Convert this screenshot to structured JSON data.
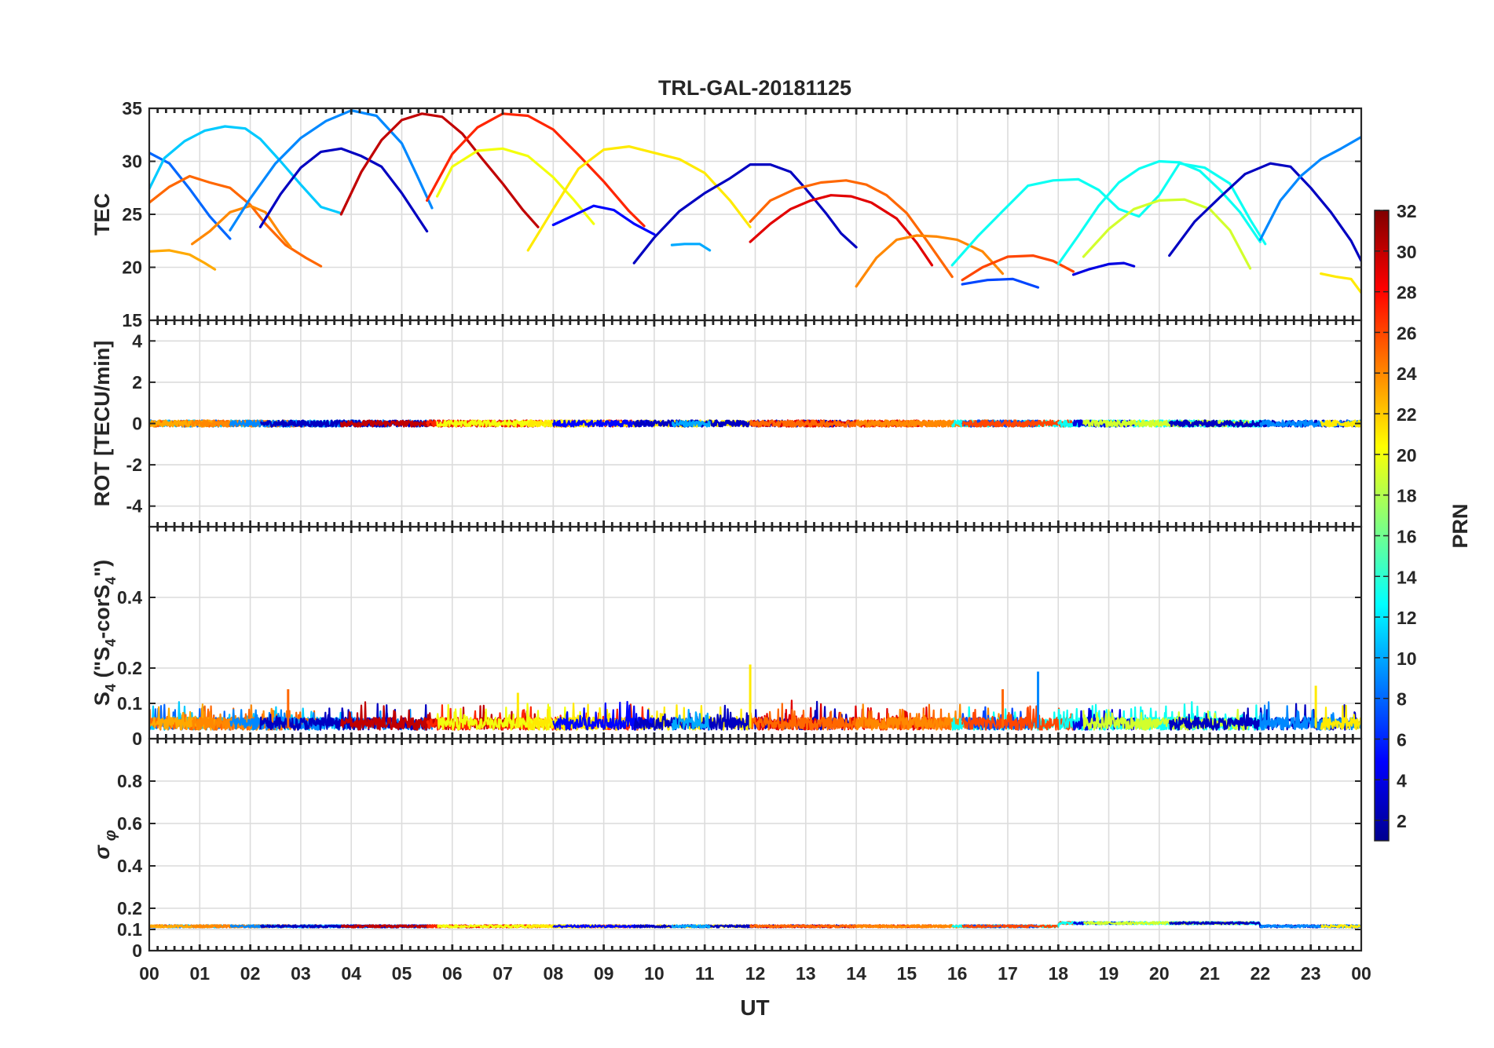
{
  "chart_data": {
    "type": "line",
    "title": "TRL-GAL-20181125",
    "xlabel": "UT",
    "x_tick_labels": [
      "00",
      "01",
      "02",
      "03",
      "04",
      "05",
      "06",
      "07",
      "08",
      "09",
      "10",
      "11",
      "12",
      "13",
      "14",
      "15",
      "16",
      "17",
      "18",
      "19",
      "20",
      "21",
      "22",
      "23",
      "00"
    ],
    "xlim": [
      0,
      24
    ],
    "colorbar": {
      "label": "PRN",
      "range": [
        1,
        32
      ],
      "tick_labels": [
        "2",
        "4",
        "6",
        "8",
        "10",
        "12",
        "14",
        "16",
        "18",
        "20",
        "22",
        "24",
        "26",
        "28",
        "30",
        "32"
      ],
      "tick_values": [
        2,
        4,
        6,
        8,
        10,
        12,
        14,
        16,
        18,
        20,
        22,
        24,
        26,
        28,
        30,
        32
      ],
      "colormap": "jet"
    },
    "panels": [
      {
        "id": "tec",
        "ylabel": "TEC",
        "ylim": [
          15,
          35
        ],
        "y_ticks": [
          15,
          20,
          25,
          30,
          35
        ],
        "y_tick_labels": [
          "15",
          "20",
          "25",
          "30",
          "35"
        ],
        "series": [
          {
            "prn": 8,
            "x": [
              0.0,
              0.4,
              0.8,
              1.2,
              1.6
            ],
            "y": [
              30.8,
              29.8,
              27.4,
              24.8,
              22.7
            ]
          },
          {
            "prn": 11,
            "x": [
              0.0,
              0.3,
              0.7,
              1.1,
              1.5,
              1.9,
              2.2,
              2.6,
              3.0,
              3.4,
              3.8
            ],
            "y": [
              27.4,
              30.3,
              31.9,
              32.9,
              33.3,
              33.1,
              32.1,
              30.0,
              27.8,
              25.7,
              25.1
            ]
          },
          {
            "prn": 25,
            "x": [
              0.0,
              0.4,
              0.8,
              1.2,
              1.6,
              2.0,
              2.3,
              2.7,
              3.1,
              3.4
            ],
            "y": [
              26.1,
              27.6,
              28.6,
              28.0,
              27.5,
              25.9,
              24.1,
              22.1,
              20.9,
              20.1
            ]
          },
          {
            "prn": 23,
            "x": [
              0.0,
              0.4,
              0.8,
              1.1,
              1.3
            ],
            "y": [
              21.5,
              21.6,
              21.2,
              20.4,
              19.8
            ]
          },
          {
            "prn": 24,
            "x": [
              0.85,
              1.2,
              1.6,
              2.0,
              2.3,
              2.6,
              2.8
            ],
            "y": [
              22.2,
              23.4,
              25.2,
              25.8,
              25.2,
              23.1,
              21.9
            ]
          },
          {
            "prn": 9,
            "x": [
              1.6,
              2.0,
              2.5,
              3.0,
              3.5,
              4.0,
              4.5,
              5.0,
              5.3,
              5.6
            ],
            "y": [
              23.5,
              26.5,
              29.8,
              32.2,
              33.8,
              34.8,
              34.3,
              31.7,
              28.7,
              25.6
            ]
          },
          {
            "prn": 3,
            "x": [
              2.2,
              2.6,
              3.0,
              3.4,
              3.8,
              4.2,
              4.6,
              5.0,
              5.5
            ],
            "y": [
              23.8,
              26.9,
              29.4,
              30.9,
              31.2,
              30.5,
              29.5,
              27.0,
              23.4
            ]
          },
          {
            "prn": 30,
            "x": [
              3.8,
              4.2,
              4.6,
              5.0,
              5.4,
              5.8,
              6.2,
              6.6,
              7.0,
              7.4,
              7.7
            ],
            "y": [
              25.0,
              29.0,
              32.0,
              33.9,
              34.5,
              34.2,
              32.6,
              30.2,
              27.9,
              25.4,
              23.8
            ]
          },
          {
            "prn": 27,
            "x": [
              5.5,
              6.0,
              6.5,
              7.0,
              7.5,
              8.0,
              8.5,
              9.0,
              9.5,
              9.8
            ],
            "y": [
              26.3,
              30.7,
              33.2,
              34.5,
              34.3,
              33.0,
              30.6,
              28.1,
              25.3,
              23.9
            ]
          },
          {
            "prn": 20,
            "x": [
              5.7,
              6.0,
              6.5,
              7.0,
              7.5,
              8.0,
              8.4,
              8.8
            ],
            "y": [
              26.7,
              29.5,
              31.0,
              31.2,
              30.5,
              28.5,
              26.4,
              24.1
            ]
          },
          {
            "prn": 21,
            "x": [
              7.5,
              8.0,
              8.5,
              9.0,
              9.5,
              10.0,
              10.5,
              11.0,
              11.5,
              11.9
            ],
            "y": [
              21.6,
              25.5,
              29.3,
              31.1,
              31.4,
              30.8,
              30.2,
              28.9,
              26.3,
              23.8
            ]
          },
          {
            "prn": 5,
            "x": [
              8.0,
              8.4,
              8.8,
              9.2,
              9.6,
              10.0
            ],
            "y": [
              24.0,
              24.9,
              25.8,
              25.4,
              24.1,
              23.1
            ]
          },
          {
            "prn": 3,
            "x": [
              9.6,
              10.0,
              10.5,
              11.0,
              11.5,
              11.9,
              12.3,
              12.7,
              13.0,
              13.4,
              13.7,
              14.0
            ],
            "y": [
              20.4,
              22.8,
              25.3,
              27.0,
              28.4,
              29.7,
              29.7,
              29.0,
              27.4,
              25.1,
              23.2,
              21.9
            ]
          },
          {
            "prn": 10,
            "x": [
              10.35,
              10.6,
              10.9,
              11.1
            ],
            "y": [
              22.1,
              22.2,
              22.2,
              21.6
            ]
          },
          {
            "prn": 29,
            "x": [
              11.9,
              12.3,
              12.7,
              13.1,
              13.5,
              13.9,
              14.3,
              14.8,
              15.2,
              15.5
            ],
            "y": [
              22.4,
              24.1,
              25.5,
              26.3,
              26.8,
              26.7,
              26.1,
              24.6,
              22.3,
              20.2
            ]
          },
          {
            "prn": 25,
            "x": [
              11.9,
              12.3,
              12.8,
              13.3,
              13.8,
              14.2,
              14.6,
              15.0,
              15.4,
              15.9
            ],
            "y": [
              24.3,
              26.3,
              27.4,
              28.0,
              28.2,
              27.8,
              26.8,
              25.1,
              22.5,
              19.1
            ]
          },
          {
            "prn": 24,
            "x": [
              14.0,
              14.4,
              14.8,
              15.2,
              15.6,
              16.0,
              16.5,
              16.9
            ],
            "y": [
              18.2,
              20.9,
              22.6,
              23.0,
              22.9,
              22.6,
              21.5,
              19.4
            ]
          },
          {
            "prn": 13,
            "x": [
              15.9,
              16.4,
              16.9,
              17.4,
              17.9,
              18.4,
              18.8,
              19.2,
              19.6,
              20.0,
              20.4,
              20.9,
              21.4,
              21.8,
              22.1
            ],
            "y": [
              20.2,
              22.9,
              25.3,
              27.7,
              28.2,
              28.3,
              27.3,
              25.5,
              24.8,
              26.8,
              29.8,
              29.4,
              27.9,
              24.5,
              22.2
            ]
          },
          {
            "prn": 7,
            "x": [
              16.1,
              16.6,
              17.1,
              17.6
            ],
            "y": [
              18.4,
              18.8,
              18.9,
              18.1
            ]
          },
          {
            "prn": 26,
            "x": [
              16.1,
              16.5,
              17.0,
              17.5,
              17.9,
              18.3
            ],
            "y": [
              18.8,
              20.0,
              21.0,
              21.1,
              20.6,
              19.6
            ]
          },
          {
            "prn": 13,
            "x": [
              18.0,
              18.4,
              18.8,
              19.2,
              19.6,
              20.0,
              20.4,
              20.8,
              21.2,
              21.6,
              22.0
            ],
            "y": [
              20.3,
              23.0,
              25.8,
              28.0,
              29.3,
              30.0,
              29.9,
              29.1,
              27.3,
              25.2,
              22.4
            ]
          },
          {
            "prn": 4,
            "x": [
              18.3,
              18.6,
              19.0,
              19.3,
              19.5
            ],
            "y": [
              19.3,
              19.8,
              20.3,
              20.4,
              20.1
            ]
          },
          {
            "prn": 19,
            "x": [
              18.5,
              19.0,
              19.5,
              20.0,
              20.5,
              21.0,
              21.4,
              21.8
            ],
            "y": [
              21.0,
              23.6,
              25.5,
              26.3,
              26.4,
              25.5,
              23.5,
              19.9
            ]
          },
          {
            "prn": 3,
            "x": [
              20.2,
              20.7,
              21.2,
              21.7,
              22.2,
              22.6,
              23.0,
              23.4,
              23.8,
              24.0
            ],
            "y": [
              21.1,
              24.3,
              26.6,
              28.8,
              29.8,
              29.5,
              27.5,
              25.2,
              22.5,
              20.6
            ]
          },
          {
            "prn": 9,
            "x": [
              22.0,
              22.4,
              22.8,
              23.2,
              23.6,
              24.0
            ],
            "y": [
              22.6,
              26.3,
              28.6,
              30.2,
              31.2,
              32.3
            ]
          },
          {
            "prn": 21,
            "x": [
              23.2,
              23.5,
              23.8,
              24.0
            ],
            "y": [
              19.4,
              19.1,
              18.9,
              17.6
            ]
          }
        ]
      },
      {
        "id": "rot",
        "ylabel": "ROT [TECU/min]",
        "ylim": [
          -5,
          5
        ],
        "y_ticks": [
          -4,
          -2,
          0,
          2,
          4
        ],
        "y_tick_labels": [
          "-4",
          "-2",
          "0",
          "2",
          "4"
        ],
        "summary": "all satellites near 0 TECU/min, |ROT| < 0.5"
      },
      {
        "id": "s4",
        "ylabel": "S4 (\"S4-corS4\")",
        "ylabel_parts": {
          "main": "S",
          "sub": "4",
          "rest1": " (\"S",
          "sub2": "4",
          "rest2": "-corS",
          "sub3": "4",
          "rest3": "\")"
        },
        "ylim": [
          0,
          0.6
        ],
        "y_ticks": [
          0,
          0.1,
          0.2,
          0.4
        ],
        "y_tick_labels": [
          "0",
          "0.1",
          "0.2",
          "0.4"
        ],
        "summary": "background 0.02-0.08, spikes: 0.21 near 11.9 UT, 0.19 near 17.6 UT"
      },
      {
        "id": "sigma_phi",
        "ylabel": "σφ",
        "ylabel_parts": {
          "main": "σ",
          "sub": "φ"
        },
        "ylim": [
          0,
          1
        ],
        "y_ticks": [
          0,
          0.1,
          0.2,
          0.4,
          0.6,
          0.8
        ],
        "y_tick_labels": [
          "0",
          "0.1",
          "0.2",
          "0.4",
          "0.6",
          "0.8"
        ],
        "summary": "near constant about 0.11-0.12, slightly higher (0.14) 18-22 UT"
      }
    ]
  }
}
